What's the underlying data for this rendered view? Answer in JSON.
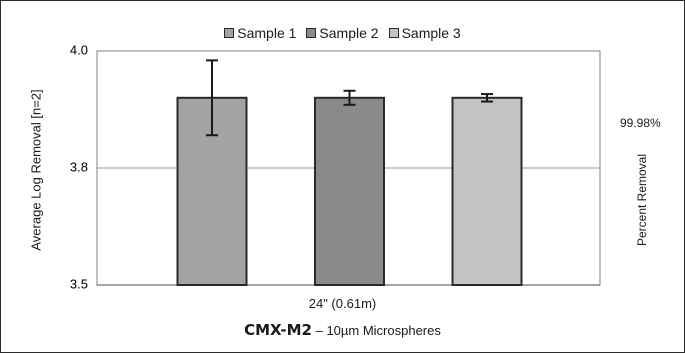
{
  "chart_data": {
    "type": "bar",
    "categories": [
      "24\" (0.61m)"
    ],
    "series": [
      {
        "name": "Sample 1",
        "values": [
          3.9
        ],
        "error": [
          0.08
        ],
        "color": "#a3a3a3"
      },
      {
        "name": "Sample 2",
        "values": [
          3.9
        ],
        "error": [
          0.015
        ],
        "color": "#8a8a8a"
      },
      {
        "name": "Sample 3",
        "values": [
          3.9
        ],
        "error": [
          0.008
        ],
        "color": "#c4c4c4"
      }
    ],
    "ylabel": "Average Log Removal [n=2]",
    "ylim": [
      3.5,
      4.0
    ],
    "yticks": [
      "3.5",
      "3.8",
      "4.0"
    ],
    "ytick_values": [
      3.5,
      3.75,
      4.0
    ],
    "secondary_axis": {
      "label": "Percent Removal",
      "tick": "99.98%"
    },
    "caption_bold": "CMX-M2",
    "caption_rest": " – 10µm Microspheres",
    "legend_position": "top",
    "grid": true
  }
}
